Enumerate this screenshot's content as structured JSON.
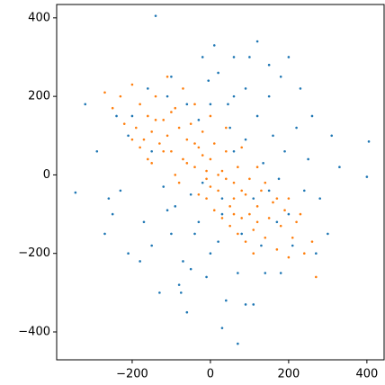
{
  "chart_data": {
    "type": "scatter",
    "xlim": [
      -393,
      444
    ],
    "ylim": [
      -471,
      434
    ],
    "xticks": [
      {
        "value": -200,
        "label": "−200"
      },
      0,
      200,
      400
    ],
    "yticks": [
      {
        "value": -400,
        "label": "−400"
      },
      {
        "value": -200,
        "label": "−200"
      },
      0,
      200,
      400
    ],
    "series": [
      {
        "color": "#1f77b4",
        "x": [
          -140,
          405,
          400,
          -345,
          70,
          -320,
          -250,
          -200,
          -180,
          -150,
          -120,
          -100,
          -80,
          -60,
          -40,
          -20,
          0,
          20,
          40,
          60,
          80,
          100,
          120,
          140,
          160,
          180,
          200,
          220,
          250,
          280,
          310,
          -290,
          -270,
          -230,
          -210,
          -170,
          -130,
          -110,
          -90,
          -70,
          -50,
          -30,
          -10,
          10,
          30,
          50,
          70,
          90,
          110,
          130,
          150,
          170,
          190,
          210,
          240,
          260,
          300,
          330,
          -60,
          -30,
          0,
          30,
          60,
          90,
          120,
          150,
          -150,
          -100,
          -50,
          20,
          -210,
          -160,
          180,
          230,
          270,
          -110,
          60,
          110,
          30,
          -20,
          150,
          200,
          -240,
          -260,
          90,
          -5,
          45,
          -75,
          135,
          175
        ],
        "y": [
          405,
          85,
          -5,
          -45,
          -430,
          180,
          -100,
          150,
          -220,
          60,
          -30,
          250,
          -280,
          180,
          -150,
          300,
          -200,
          260,
          -320,
          200,
          -150,
          300,
          150,
          -250,
          100,
          250,
          -100,
          120,
          40,
          -60,
          100,
          60,
          -150,
          -40,
          100,
          -120,
          -300,
          200,
          -80,
          -220,
          -50,
          140,
          -260,
          330,
          -100,
          120,
          -250,
          220,
          -60,
          -180,
          200,
          -120,
          60,
          -180,
          -40,
          150,
          -150,
          20,
          -350,
          -120,
          180,
          -60,
          60,
          -330,
          340,
          -40,
          -180,
          -150,
          -240,
          -170,
          -200,
          220,
          -250,
          220,
          -200,
          -90,
          300,
          -330,
          -390,
          -20,
          280,
          300,
          150,
          -60,
          90,
          240,
          180,
          -300,
          30,
          -10
        ]
      },
      {
        "color": "#ff7f0e",
        "x": [
          -270,
          -250,
          -230,
          -220,
          -200,
          -190,
          -180,
          -170,
          -160,
          -150,
          -140,
          -130,
          -120,
          -110,
          -100,
          -90,
          -80,
          -70,
          -60,
          -50,
          -40,
          -30,
          -20,
          -10,
          0,
          10,
          20,
          30,
          40,
          50,
          60,
          70,
          80,
          90,
          100,
          110,
          120,
          130,
          140,
          150,
          160,
          170,
          180,
          190,
          200,
          210,
          220,
          240,
          260,
          270,
          -100,
          -60,
          -20,
          20,
          60,
          100,
          -140,
          -40,
          0,
          40,
          80,
          120,
          -120,
          -80,
          -30,
          10,
          50,
          90,
          -150,
          -180,
          -40,
          0,
          40,
          80,
          120,
          -90,
          -10,
          30,
          70,
          110,
          -200,
          -160,
          140,
          170,
          -70,
          -110,
          200,
          230,
          -10,
          60
        ],
        "y": [
          210,
          170,
          200,
          130,
          230,
          120,
          180,
          90,
          150,
          110,
          200,
          80,
          140,
          100,
          60,
          170,
          120,
          40,
          90,
          130,
          20,
          70,
          110,
          -10,
          40,
          80,
          -40,
          10,
          60,
          -80,
          -20,
          20,
          -110,
          -50,
          -10,
          -140,
          -80,
          -40,
          -160,
          -110,
          -70,
          -190,
          -130,
          -90,
          -210,
          -160,
          -120,
          -200,
          -170,
          -260,
          160,
          30,
          50,
          0,
          -60,
          -100,
          140,
          80,
          -30,
          -10,
          -40,
          -120,
          60,
          -20,
          -50,
          -90,
          -130,
          -170,
          30,
          70,
          180,
          150,
          120,
          70,
          20,
          0,
          -60,
          -110,
          -150,
          -200,
          90,
          40,
          -20,
          -60,
          220,
          250,
          -60,
          -100,
          10,
          -100
        ]
      }
    ]
  }
}
